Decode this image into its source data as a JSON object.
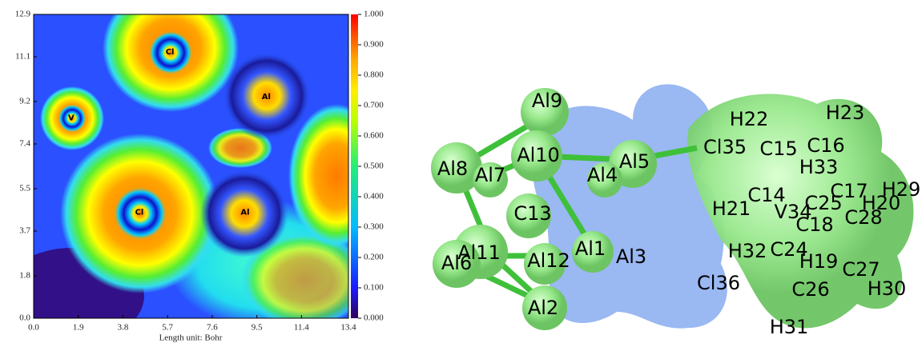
{
  "chart_data": {
    "type": "heatmap",
    "xlabel": "Length unit: Bohr",
    "xlim": [
      0,
      13.4
    ],
    "ylim": [
      0,
      12.9
    ],
    "xticks": [
      {
        "value": 0,
        "label": "0.0"
      },
      1.9,
      3.8,
      5.7,
      7.6,
      9.5,
      11.4,
      13.4
    ],
    "yticks": [
      {
        "value": 0,
        "label": "0.0"
      },
      1.8,
      3.7,
      5.5,
      7.4,
      9.2,
      11.1,
      12.9
    ],
    "colorbar": {
      "lim": [
        0,
        1
      ],
      "ticks": [
        {
          "value": 0,
          "label": "0.000"
        },
        {
          "value": 0.1,
          "label": "0.100"
        },
        {
          "value": 0.2,
          "label": "0.200"
        },
        {
          "value": 0.3,
          "label": "0.300"
        },
        {
          "value": 0.4,
          "label": "0.400"
        },
        {
          "value": 0.5,
          "label": "0.500"
        },
        {
          "value": 0.6,
          "label": "0.600"
        },
        {
          "value": 0.7,
          "label": "0.700"
        },
        {
          "value": 0.8,
          "label": "0.800"
        },
        {
          "value": 0.9,
          "label": "0.900"
        },
        {
          "value": 1,
          "label": "1.000"
        }
      ]
    },
    "annotations": [
      {
        "text": "Cl",
        "x": 5.8,
        "y": 11.3
      },
      {
        "text": "Al",
        "x": 9.9,
        "y": 9.4
      },
      {
        "text": "V",
        "x": 1.6,
        "y": 8.5
      },
      {
        "text": "Cl",
        "x": 4.5,
        "y": 4.5
      },
      {
        "text": "Al",
        "x": 9.0,
        "y": 4.5
      }
    ]
  },
  "molecule": {
    "labels": [
      "Al9",
      "H22",
      "H23",
      "Al8",
      "Al10",
      "Cl35",
      "C15",
      "C16",
      "Al7",
      "Al4",
      "Al5",
      "H33",
      "C14",
      "C17",
      "H29",
      "C13",
      "H21",
      "V34",
      "C25",
      "H20",
      "C28",
      "C18",
      "Al11",
      "Al1",
      "Al3",
      "H32",
      "C24",
      "Al6",
      "Al12",
      "H19",
      "C27",
      "Cl36",
      "C26",
      "H30",
      "Al2",
      "H31"
    ]
  }
}
